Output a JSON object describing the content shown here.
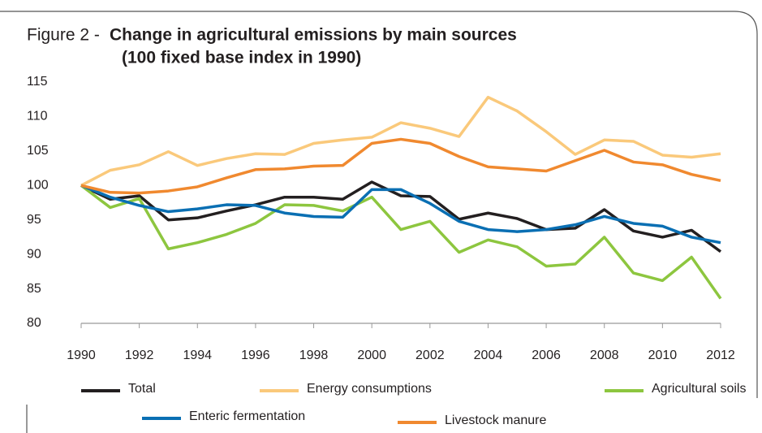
{
  "chart_data": {
    "type": "line",
    "label": "Figure 2 -",
    "title": "Change in agricultural emissions by main sources",
    "subtitle": "(100 fixed base index in 1990)",
    "x": [
      1990,
      1991,
      1992,
      1993,
      1994,
      1995,
      1996,
      1997,
      1998,
      1999,
      2000,
      2001,
      2002,
      2003,
      2004,
      2005,
      2006,
      2007,
      2008,
      2009,
      2010,
      2011,
      2012
    ],
    "xlim": [
      1990,
      2012
    ],
    "xticks": [
      1990,
      1992,
      1994,
      1996,
      1998,
      2000,
      2002,
      2004,
      2006,
      2008,
      2010,
      2012
    ],
    "ylim": [
      80,
      115
    ],
    "yticks": [
      80,
      85,
      90,
      95,
      100,
      105,
      110,
      115
    ],
    "grid": false,
    "series": [
      {
        "name": "Total",
        "color": "#231f20",
        "values": [
          100,
          98,
          98.5,
          95,
          95.3,
          96.3,
          97.2,
          98.3,
          98.3,
          98,
          100.5,
          98.5,
          98.4,
          95.1,
          96,
          95.2,
          93.6,
          93.8,
          96.5,
          93.4,
          92.5,
          93.5,
          90.4
        ]
      },
      {
        "name": "Energy consumptions",
        "color": "#fac97b",
        "values": [
          100,
          102.2,
          103,
          104.9,
          102.9,
          103.9,
          104.6,
          104.5,
          106.1,
          106.6,
          107,
          109.1,
          108.3,
          107.1,
          112.8,
          110.8,
          107.8,
          104.5,
          106.6,
          106.4,
          104.4,
          104.1,
          104.6
        ]
      },
      {
        "name": "Agricultural soils",
        "color": "#8dc63f",
        "values": [
          100,
          96.8,
          98.1,
          90.8,
          91.7,
          92.9,
          94.5,
          97.2,
          97.1,
          96.3,
          98.3,
          93.6,
          94.8,
          90.3,
          92.1,
          91.1,
          88.3,
          88.6,
          92.5,
          87.3,
          86.2,
          89.6,
          83.6
        ]
      },
      {
        "name": "Enteric fermentation",
        "color": "#0a6fb3",
        "values": [
          100,
          98.3,
          97.1,
          96.2,
          96.6,
          97.2,
          97.1,
          96,
          95.5,
          95.4,
          99.4,
          99.4,
          97.4,
          94.8,
          93.6,
          93.3,
          93.6,
          94.3,
          95.5,
          94.5,
          94.1,
          92.5,
          91.7
        ]
      },
      {
        "name": "Livestock manure",
        "color": "#f0892f",
        "values": [
          100,
          99,
          98.9,
          99.2,
          99.8,
          101.1,
          102.3,
          102.4,
          102.8,
          102.9,
          106.1,
          106.7,
          106.1,
          104.2,
          102.7,
          102.4,
          102.1,
          103.6,
          105.1,
          103.4,
          103,
          101.6,
          100.7
        ]
      }
    ]
  }
}
